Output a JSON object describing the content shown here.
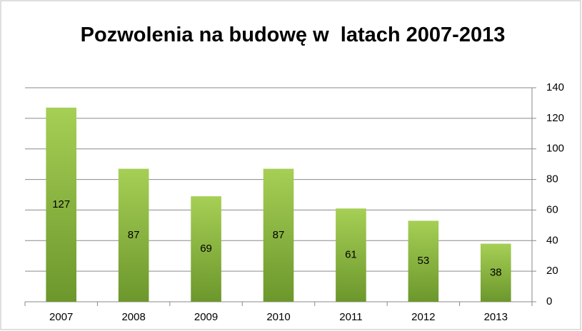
{
  "chart_data": {
    "type": "bar",
    "title": "Pozwolenia na budowę w  latach 2007-2013",
    "categories": [
      "2007",
      "2008",
      "2009",
      "2010",
      "2011",
      "2012",
      "2013"
    ],
    "values": [
      127,
      87,
      69,
      87,
      61,
      53,
      38
    ],
    "color": "#8cb841",
    "ylim": [
      0,
      140
    ],
    "yticks": [
      0,
      20,
      40,
      60,
      80,
      100,
      120,
      140
    ],
    "grid": true,
    "y_axis_side": "right"
  }
}
